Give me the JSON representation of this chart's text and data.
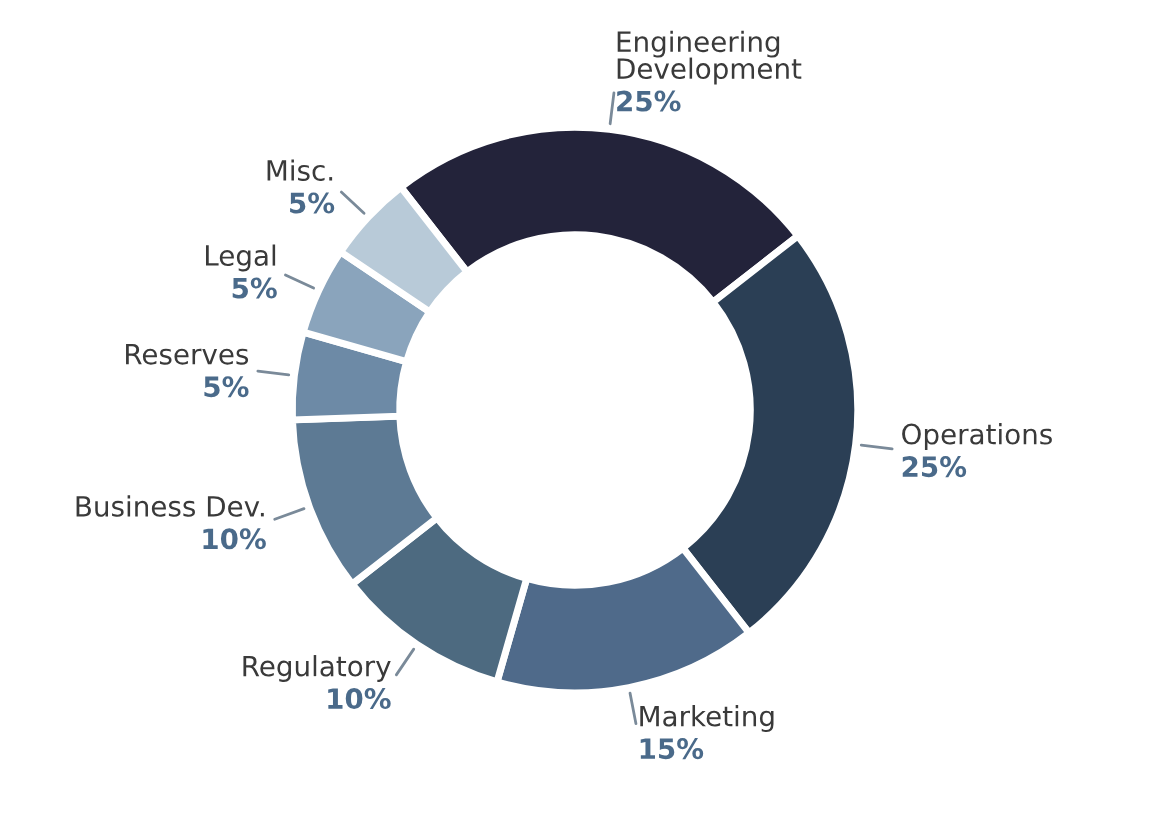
{
  "chart_data": {
    "type": "donut",
    "categories": [
      "Engineering\nDevelopment",
      "Operations",
      "Marketing",
      "Regulatory",
      "Business Dev.",
      "Reserves",
      "Legal",
      "Misc."
    ],
    "values": [
      25,
      25,
      15,
      10,
      10,
      5,
      5,
      5
    ],
    "value_labels": [
      "25%",
      "25%",
      "15%",
      "10%",
      "10%",
      "5%",
      "5%",
      "5%"
    ],
    "colors": [
      "#23233a",
      "#2b3f55",
      "#4f6a8a",
      "#4d6a80",
      "#5d7a94",
      "#6d8aa6",
      "#8aa4bc",
      "#b8cad8"
    ],
    "legend": false
  }
}
